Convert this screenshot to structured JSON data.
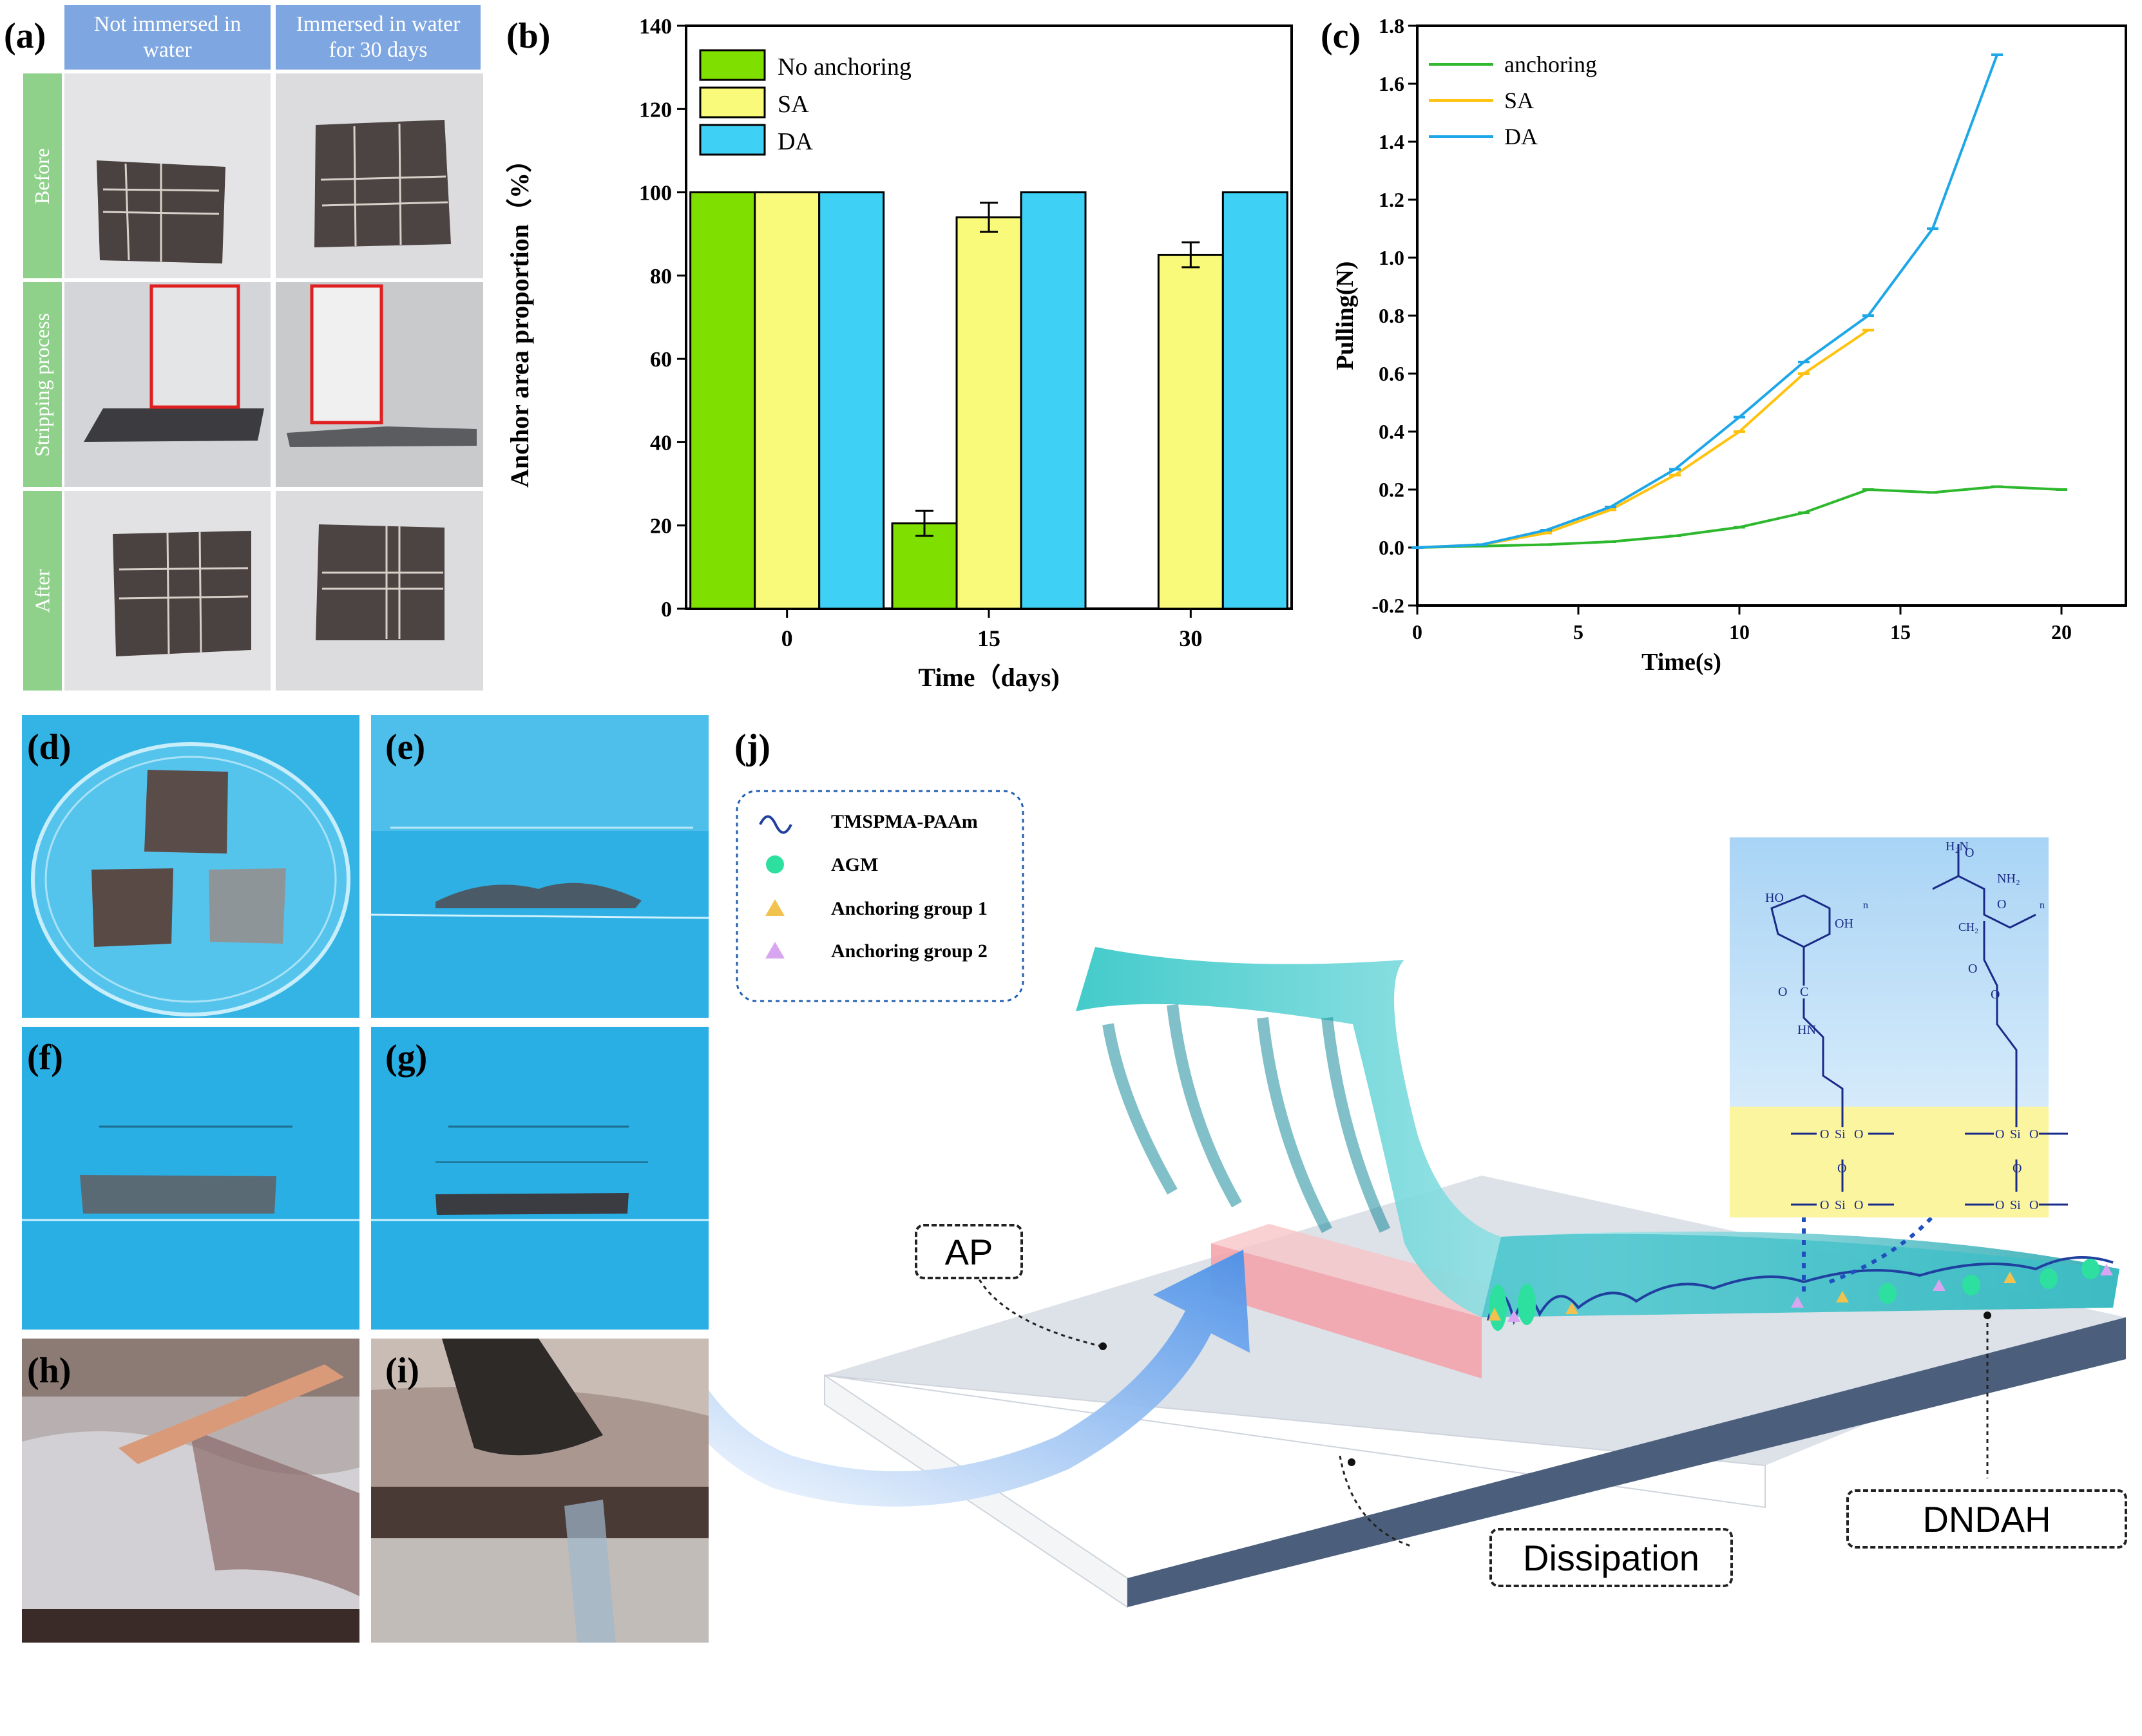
{
  "panel_labels": {
    "a": "(a)",
    "b": "(b)",
    "c": "(c)",
    "d": "(d)",
    "e": "(e)",
    "f": "(f)",
    "g": "(g)",
    "h": "(h)",
    "i": "(i)",
    "j": "(j)"
  },
  "panel_a": {
    "col_headers": [
      "Not immersed in water",
      "Immersed in water for 30 days"
    ],
    "row_labels": [
      "Before",
      "Stripping process",
      "After"
    ]
  },
  "chart_data": [
    {
      "type": "bar",
      "xlabel": "Time（days)",
      "ylabel": "Anchor area proportion（%）",
      "categories": [
        "0",
        "15",
        "30"
      ],
      "ylim": [
        0,
        140
      ],
      "yticks": [
        "0",
        "20",
        "40",
        "60",
        "80",
        "100",
        "120",
        "140"
      ],
      "series": [
        {
          "name": "No anchoring",
          "color": "#7fe000",
          "values": [
            100,
            20.5,
            null
          ],
          "errors": [
            0,
            3,
            0
          ]
        },
        {
          "name": "SA",
          "color": "#f9f97a",
          "values": [
            100,
            94,
            85
          ],
          "errors": [
            0,
            3.5,
            3
          ]
        },
        {
          "name": "DA",
          "color": "#3fd0f5",
          "values": [
            100,
            100,
            100
          ],
          "errors": [
            0,
            0,
            0
          ]
        }
      ],
      "legend": "top-left"
    },
    {
      "type": "line",
      "xlabel": "Time(s)",
      "ylabel": "Pulling(N)",
      "xlim": [
        0,
        22
      ],
      "ylim": [
        -0.2,
        1.8
      ],
      "xticks": [
        "0",
        "5",
        "10",
        "15",
        "20"
      ],
      "yticks": [
        "-0.2",
        "0.0",
        "0.2",
        "0.4",
        "0.6",
        "0.8",
        "1.0",
        "1.2",
        "1.4",
        "1.6",
        "1.8"
      ],
      "series": [
        {
          "name": "anchoring",
          "color": "#2db82d",
          "x": [
            0,
            2,
            4,
            6,
            8,
            10,
            12,
            14,
            16,
            18,
            20
          ],
          "y": [
            0,
            0.005,
            0.01,
            0.02,
            0.04,
            0.07,
            0.12,
            0.2,
            0.19,
            0.21,
            0.2
          ]
        },
        {
          "name": "SA",
          "color": "#ffc20e",
          "x": [
            0,
            2,
            4,
            6,
            8,
            10,
            12,
            14
          ],
          "y": [
            0,
            0.01,
            0.05,
            0.13,
            0.25,
            0.4,
            0.6,
            0.75
          ]
        },
        {
          "name": "DA",
          "color": "#1ea7e8",
          "x": [
            0,
            2,
            4,
            6,
            8,
            10,
            12,
            14,
            16,
            18
          ],
          "y": [
            0,
            0.01,
            0.06,
            0.14,
            0.27,
            0.45,
            0.64,
            0.8,
            1.1,
            1.7
          ]
        }
      ],
      "legend": "top-left"
    }
  ],
  "panel_j": {
    "legend": [
      "TMSPMA-PAAm",
      "AGM",
      "Anchoring group 1",
      "Anchoring group 2"
    ],
    "labels": {
      "ap": "AP",
      "dissipation": "Dissipation",
      "dndah": "DNDAH"
    },
    "chem_left": [
      "HO",
      "OH",
      "C",
      "O",
      "HN",
      "O",
      "Si",
      "O",
      "O",
      "O",
      "Si",
      "O",
      "n"
    ],
    "chem_right": [
      "O",
      "NH₂",
      "H₂N",
      "O",
      "CH₂",
      "O",
      "O",
      "O",
      "Si",
      "O",
      "O",
      "O",
      "Si",
      "O",
      "n"
    ]
  }
}
